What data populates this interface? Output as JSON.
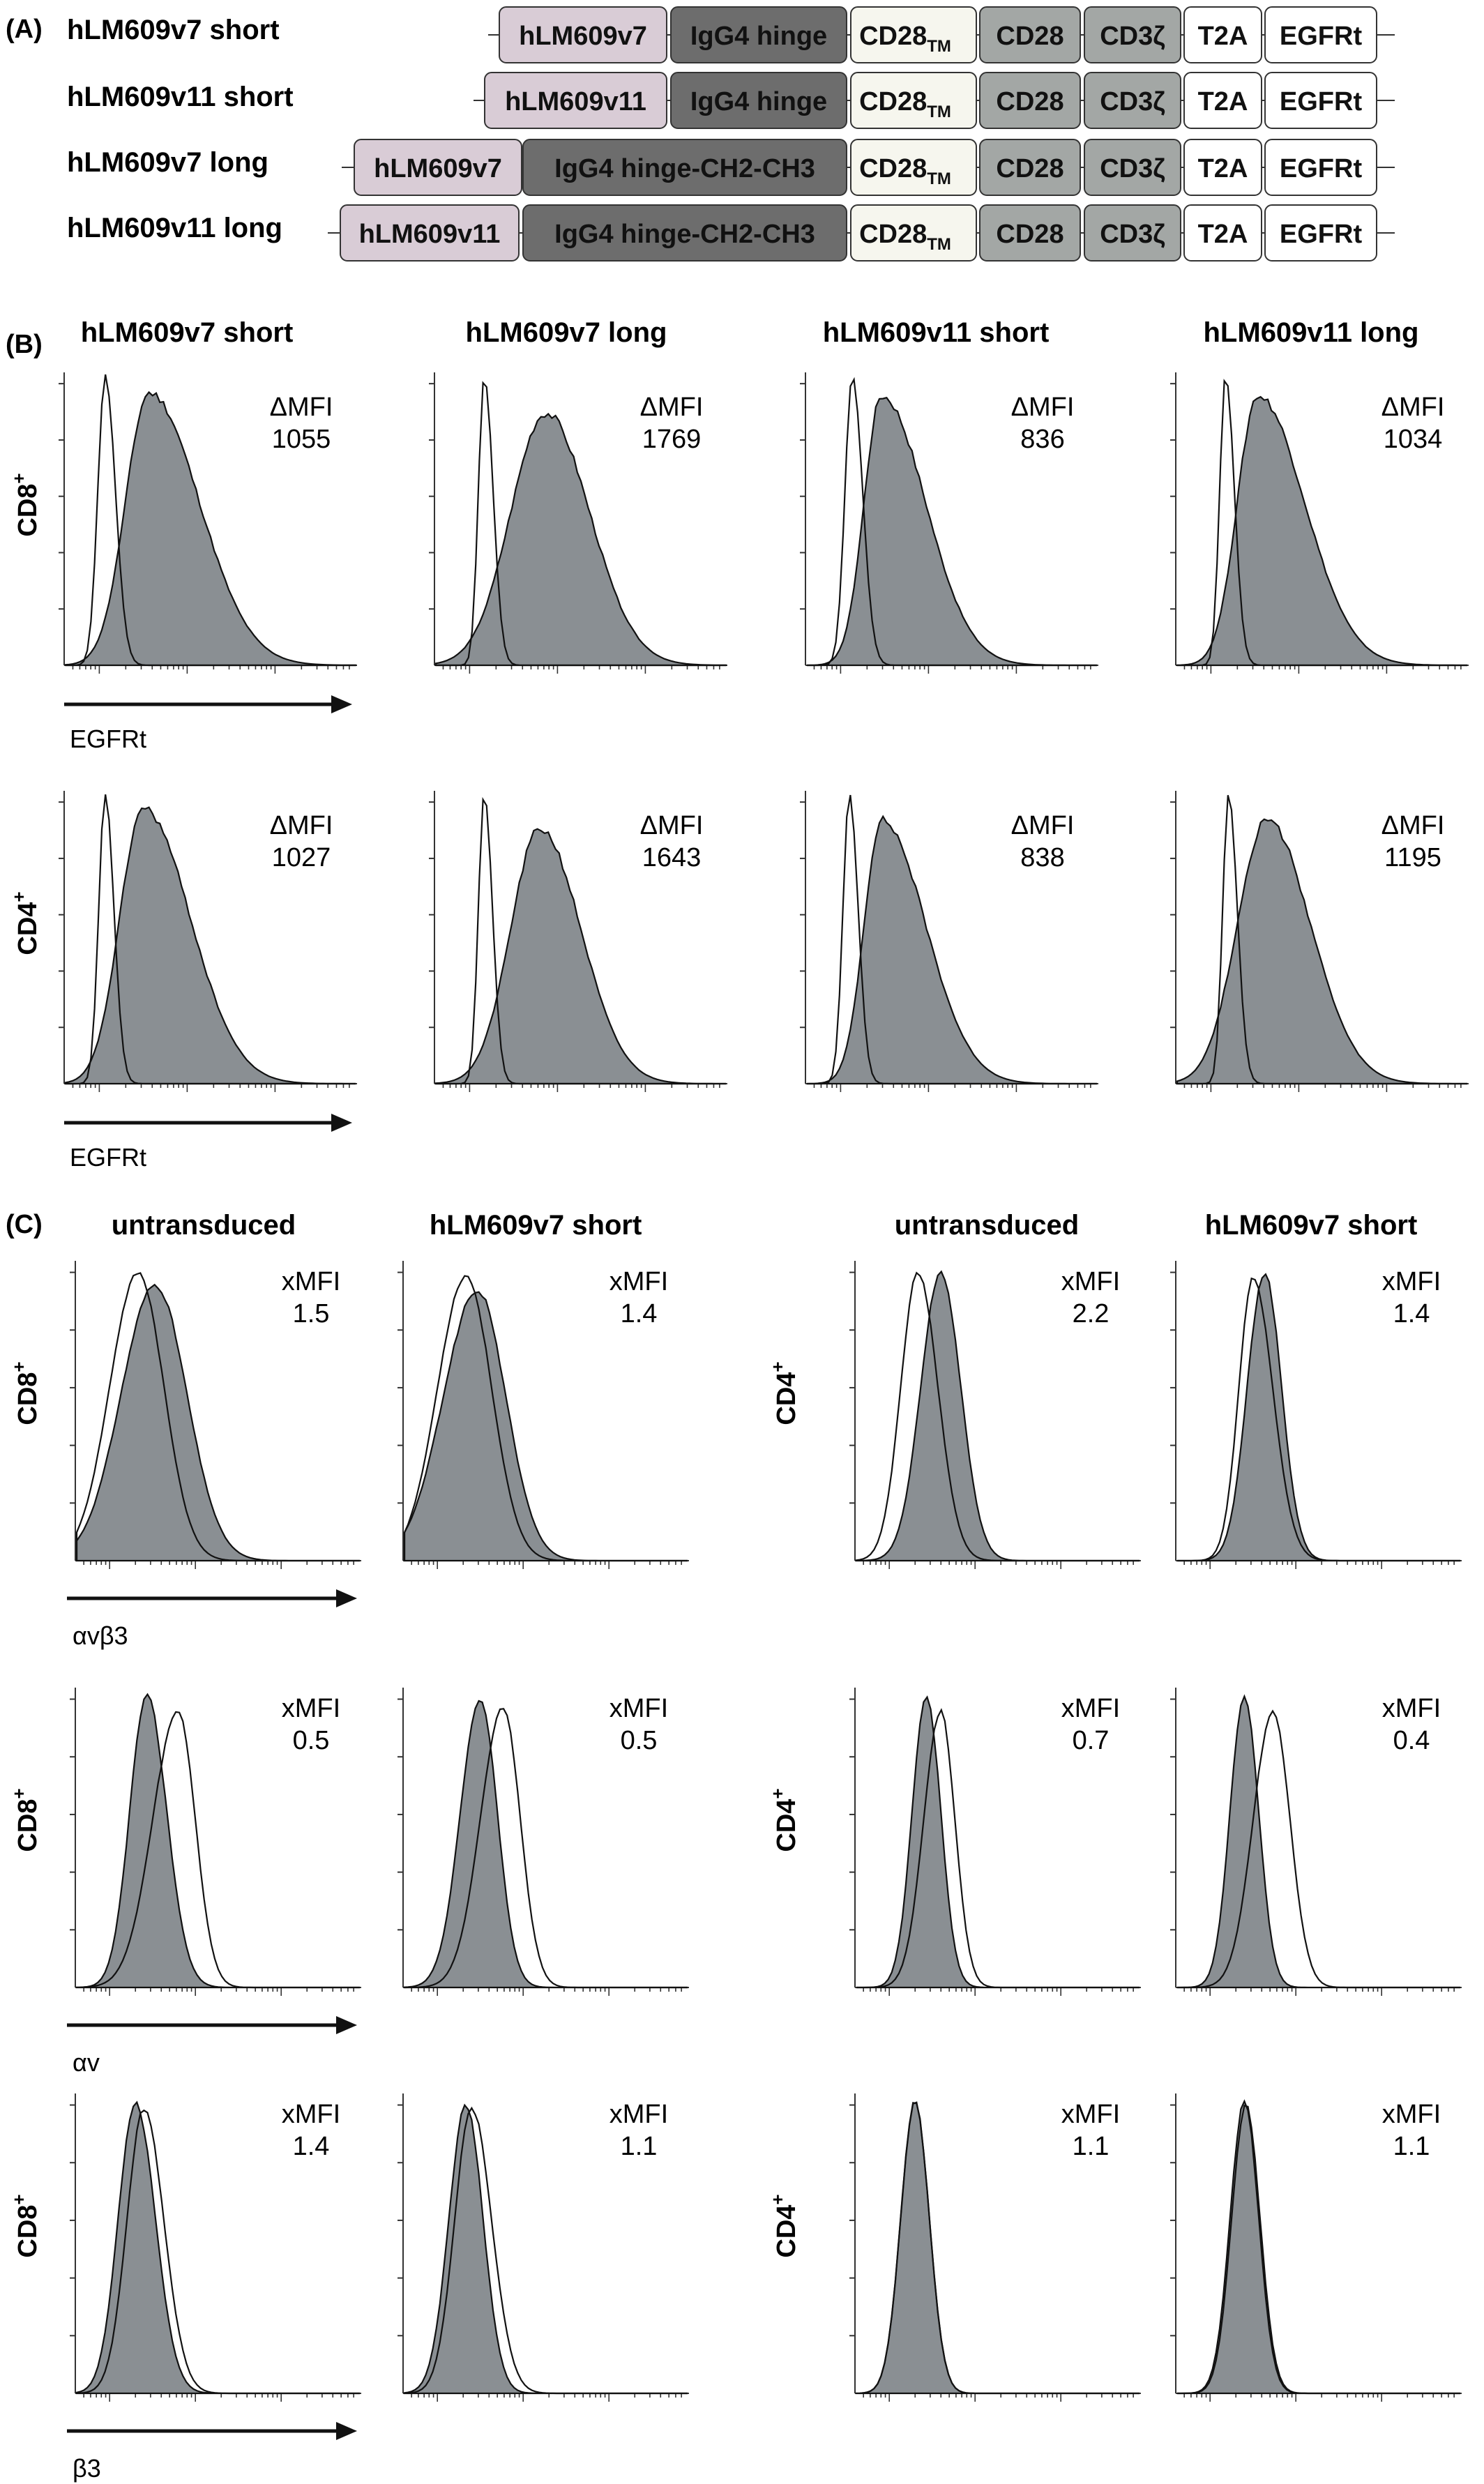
{
  "panel_labels": {
    "a": "(A)",
    "b": "(B)",
    "c": "(C)"
  },
  "panel_a": {
    "constructs": [
      {
        "name": "hLM609v7 short",
        "segments": [
          "hLM609v7",
          "IgG4 hinge",
          "CD28",
          "CD28",
          "CD3ζ",
          "T2A",
          "EGFRt"
        ]
      },
      {
        "name": "hLM609v11 short",
        "segments": [
          "hLM609v11",
          "IgG4 hinge",
          "CD28",
          "CD28",
          "CD3ζ",
          "T2A",
          "EGFRt"
        ]
      },
      {
        "name": "hLM609v7 long",
        "segments": [
          "hLM609v7",
          "IgG4 hinge-CH2-CH3",
          "CD28",
          "CD28",
          "CD3ζ",
          "T2A",
          "EGFRt"
        ]
      },
      {
        "name": "hLM609v11 long",
        "segments": [
          "hLM609v11",
          "IgG4 hinge-CH2-CH3",
          "CD28",
          "CD28",
          "CD3ζ",
          "T2A",
          "EGFRt"
        ]
      }
    ],
    "tm_subscript": "TM",
    "colors": {
      "scfv": "#d9ccd6",
      "hinge": "#6d6d6d",
      "tm": "#f6f6ee",
      "cd28": "#a3a7a5",
      "cd3z": "#a3a7a5",
      "t2a": "#ffffff",
      "egfrt": "#ffffff"
    }
  },
  "panel_b": {
    "column_titles": [
      "hLM609v7 short",
      "hLM609v7 long",
      "hLM609v11 short",
      "hLM609v11 long"
    ],
    "rows": [
      {
        "label_main": "CD8",
        "label_sup": "+",
        "axis_label": "EGFRt",
        "mfi_label": "ΔMFI",
        "values": [
          "1055",
          "1769",
          "836",
          "1034"
        ]
      },
      {
        "label_main": "CD4",
        "label_sup": "+",
        "axis_label": "EGFRt",
        "mfi_label": "ΔMFI",
        "values": [
          "1027",
          "1643",
          "838",
          "1195"
        ]
      }
    ]
  },
  "panel_c": {
    "column_titles": [
      "untransduced",
      "hLM609v7 short",
      "untransduced",
      "hLM609v7 short"
    ],
    "rows": [
      {
        "left_label": "CD8",
        "right_label": "CD4",
        "label_sup": "+",
        "axis_label": "αvβ3",
        "mfi_label": "xMFI",
        "values": [
          "1.5",
          "1.4",
          "2.2",
          "1.4"
        ]
      },
      {
        "left_label": "CD8",
        "right_label": "CD4",
        "label_sup": "+",
        "axis_label": "αv",
        "mfi_label": "xMFI",
        "values": [
          "0.5",
          "0.5",
          "0.7",
          "0.4"
        ]
      },
      {
        "left_label": "CD8",
        "right_label": "CD4",
        "label_sup": "+",
        "axis_label": "β3",
        "mfi_label": "xMFI",
        "values": [
          "1.4",
          "1.1",
          "1.1",
          "1.1"
        ]
      }
    ]
  },
  "chart_data": {
    "type": "histogram",
    "fill_color": "#8a8f93",
    "outline_color": "#111111"
  }
}
